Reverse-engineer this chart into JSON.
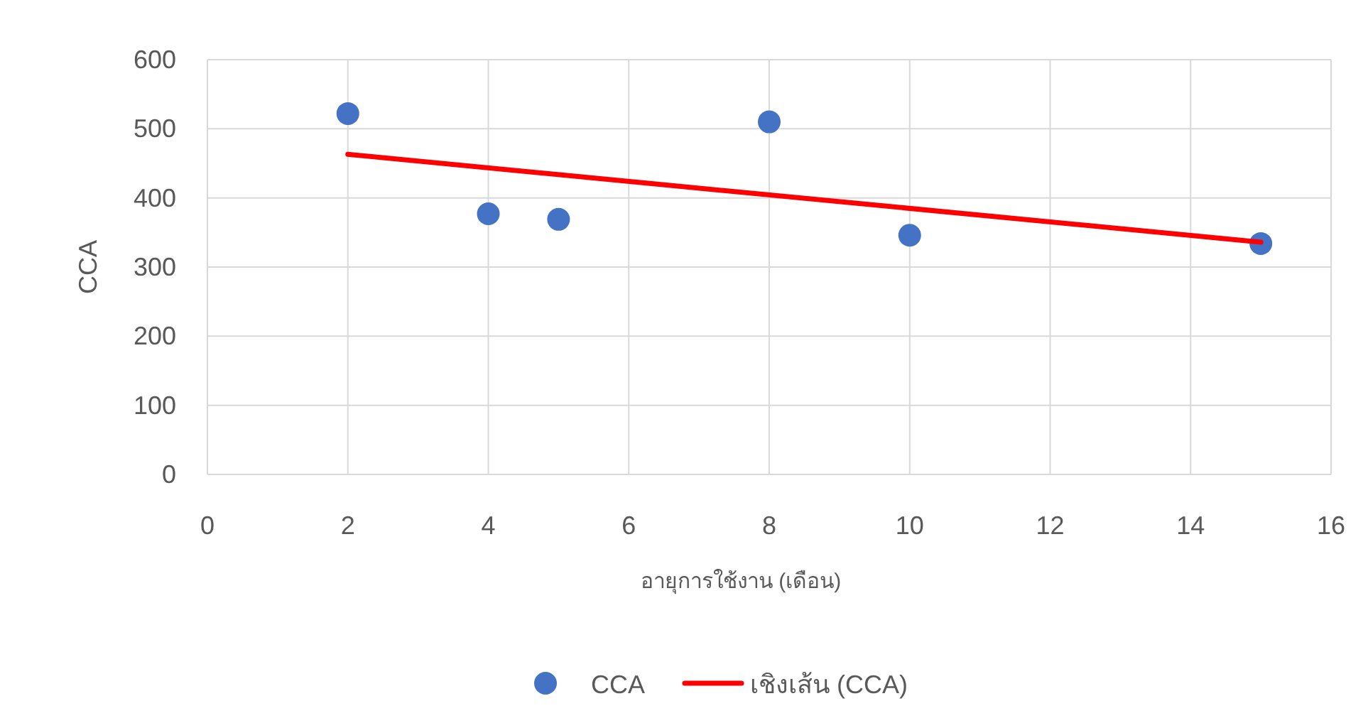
{
  "chart_data": {
    "type": "scatter",
    "xlabel": "อายุการใช้งาน (เดือน)",
    "ylabel": "CCA",
    "xlim": [
      0,
      16
    ],
    "xticks": [
      0,
      2,
      4,
      6,
      8,
      10,
      12,
      14,
      16
    ],
    "ylim": [
      0,
      600
    ],
    "yticks": [
      0,
      100,
      200,
      300,
      400,
      500,
      600
    ],
    "grid": true,
    "legend": "bottom",
    "marker": "circle",
    "series": [
      {
        "name": "CCA",
        "color": "#4472c4",
        "x": [
          2,
          4,
          5,
          8,
          10,
          15
        ],
        "values": [
          522,
          377,
          369,
          510,
          346,
          334
        ]
      },
      {
        "name": "เชิงเส้น (CCA)",
        "type": "line",
        "color": "#ff0000",
        "marker": "none",
        "x": [
          2,
          15
        ],
        "values": [
          463,
          336
        ]
      }
    ]
  }
}
